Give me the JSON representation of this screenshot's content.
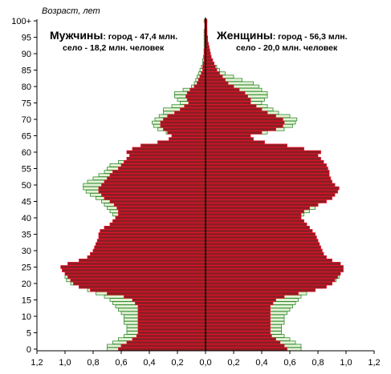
{
  "chart_data": {
    "type": "bar",
    "subtype": "population-pyramid",
    "ylabel": "Возраст, лет",
    "xlim": [
      -1.2,
      1.2
    ],
    "x_ticks": [
      "1,2",
      "1,0",
      "0,8",
      "0,6",
      "0,4",
      "0,2",
      "0,0",
      "0,2",
      "0,4",
      "0,6",
      "0,8",
      "1,0",
      "1,2"
    ],
    "y_ticks": [
      "0",
      "5",
      "10",
      "15",
      "20",
      "25",
      "30",
      "35",
      "40",
      "45",
      "50",
      "55",
      "60",
      "65",
      "70",
      "75",
      "80",
      "85",
      "90",
      "95",
      "100+"
    ],
    "grid": false,
    "legend": "none",
    "panels": {
      "left": {
        "title": "Мужчины",
        "line1": ": город  - 47,4 млн.",
        "line2": "село - 18,2 млн. человек"
      },
      "right": {
        "title": "Женщины",
        "line1": ": город - 56,3 млн.",
        "line2": "село - 20,0 млн. человек"
      }
    },
    "ages": [
      0,
      1,
      2,
      3,
      4,
      5,
      6,
      7,
      8,
      9,
      10,
      11,
      12,
      13,
      14,
      15,
      16,
      17,
      18,
      19,
      20,
      21,
      22,
      23,
      24,
      25,
      26,
      27,
      28,
      29,
      30,
      31,
      32,
      33,
      34,
      35,
      36,
      37,
      38,
      39,
      40,
      41,
      42,
      43,
      44,
      45,
      46,
      47,
      48,
      49,
      50,
      51,
      52,
      53,
      54,
      55,
      56,
      57,
      58,
      59,
      60,
      61,
      62,
      63,
      64,
      65,
      66,
      67,
      68,
      69,
      70,
      71,
      72,
      73,
      74,
      75,
      76,
      77,
      78,
      79,
      80,
      81,
      82,
      83,
      84,
      85,
      86,
      87,
      88,
      89,
      90,
      91,
      92,
      93,
      94,
      95,
      96,
      97,
      98,
      99,
      100
    ],
    "series": [
      {
        "name": "село",
        "color": "#2e8b2e",
        "fill": "#e6f2d8",
        "male": [
          0.7,
          0.7,
          0.66,
          0.62,
          0.58,
          0.56,
          0.56,
          0.56,
          0.58,
          0.58,
          0.58,
          0.6,
          0.62,
          0.64,
          0.66,
          0.68,
          0.72,
          0.78,
          0.84,
          0.9,
          0.96,
          0.99,
          1.0,
          0.99,
          0.96,
          0.93,
          0.86,
          0.78,
          0.74,
          0.71,
          0.7,
          0.69,
          0.69,
          0.68,
          0.67,
          0.66,
          0.66,
          0.65,
          0.65,
          0.64,
          0.64,
          0.66,
          0.68,
          0.7,
          0.72,
          0.74,
          0.78,
          0.82,
          0.85,
          0.87,
          0.87,
          0.84,
          0.8,
          0.76,
          0.72,
          0.7,
          0.68,
          0.62,
          0.56,
          0.5,
          0.46,
          0.4,
          0.3,
          0.22,
          0.2,
          0.22,
          0.28,
          0.34,
          0.37,
          0.38,
          0.36,
          0.33,
          0.3,
          0.3,
          0.24,
          0.18,
          0.2,
          0.22,
          0.22,
          0.16,
          0.1,
          0.08,
          0.07,
          0.06,
          0.05,
          0.04,
          0.03,
          0.02,
          0.02,
          0.015,
          0.01,
          0.01,
          0.01,
          0.01,
          0.01,
          0.01,
          0.01,
          0.01,
          0.005,
          0.005,
          0.01
        ],
        "female": [
          0.68,
          0.68,
          0.64,
          0.6,
          0.56,
          0.54,
          0.54,
          0.54,
          0.56,
          0.56,
          0.56,
          0.58,
          0.6,
          0.62,
          0.64,
          0.66,
          0.68,
          0.72,
          0.78,
          0.84,
          0.9,
          0.93,
          0.95,
          0.94,
          0.9,
          0.86,
          0.8,
          0.74,
          0.7,
          0.68,
          0.67,
          0.66,
          0.66,
          0.65,
          0.65,
          0.64,
          0.64,
          0.64,
          0.64,
          0.64,
          0.66,
          0.7,
          0.74,
          0.78,
          0.8,
          0.82,
          0.86,
          0.88,
          0.9,
          0.92,
          0.92,
          0.89,
          0.86,
          0.82,
          0.78,
          0.74,
          0.72,
          0.7,
          0.66,
          0.62,
          0.58,
          0.5,
          0.4,
          0.28,
          0.24,
          0.3,
          0.44,
          0.56,
          0.62,
          0.64,
          0.65,
          0.6,
          0.52,
          0.48,
          0.44,
          0.4,
          0.42,
          0.44,
          0.44,
          0.4,
          0.38,
          0.34,
          0.26,
          0.2,
          0.14,
          0.1,
          0.08,
          0.06,
          0.05,
          0.04,
          0.03,
          0.02,
          0.02,
          0.015,
          0.01,
          0.01,
          0.01,
          0.01,
          0.005,
          0.005,
          0.01
        ]
      },
      {
        "name": "город",
        "color": "#e8102a",
        "fill": "#8b1e24",
        "male": [
          0.62,
          0.6,
          0.56,
          0.52,
          0.49,
          0.48,
          0.48,
          0.48,
          0.48,
          0.48,
          0.48,
          0.48,
          0.48,
          0.48,
          0.5,
          0.52,
          0.58,
          0.7,
          0.82,
          0.9,
          0.94,
          0.96,
          0.98,
          1.0,
          1.02,
          1.03,
          0.98,
          0.9,
          0.84,
          0.82,
          0.8,
          0.79,
          0.78,
          0.77,
          0.76,
          0.76,
          0.75,
          0.72,
          0.68,
          0.66,
          0.64,
          0.62,
          0.62,
          0.63,
          0.65,
          0.68,
          0.72,
          0.74,
          0.76,
          0.76,
          0.74,
          0.72,
          0.7,
          0.68,
          0.66,
          0.62,
          0.6,
          0.58,
          0.56,
          0.54,
          0.56,
          0.52,
          0.46,
          0.34,
          0.26,
          0.24,
          0.27,
          0.3,
          0.32,
          0.32,
          0.3,
          0.27,
          0.22,
          0.18,
          0.15,
          0.12,
          0.13,
          0.14,
          0.13,
          0.11,
          0.08,
          0.06,
          0.05,
          0.04,
          0.03,
          0.02,
          0.02,
          0.015,
          0.01,
          0.01,
          0.01,
          0.01,
          0.005,
          0.005,
          0.005,
          0.005,
          0.005,
          0.005,
          0.005,
          0.005,
          0.005
        ],
        "female": [
          0.58,
          0.56,
          0.53,
          0.5,
          0.47,
          0.46,
          0.46,
          0.46,
          0.46,
          0.46,
          0.46,
          0.46,
          0.46,
          0.46,
          0.48,
          0.5,
          0.56,
          0.66,
          0.78,
          0.86,
          0.9,
          0.92,
          0.94,
          0.96,
          0.98,
          0.98,
          0.96,
          0.9,
          0.86,
          0.84,
          0.83,
          0.82,
          0.81,
          0.8,
          0.79,
          0.78,
          0.76,
          0.74,
          0.72,
          0.7,
          0.68,
          0.68,
          0.7,
          0.74,
          0.8,
          0.86,
          0.9,
          0.92,
          0.94,
          0.95,
          0.92,
          0.9,
          0.89,
          0.88,
          0.88,
          0.87,
          0.86,
          0.84,
          0.82,
          0.8,
          0.82,
          0.7,
          0.58,
          0.42,
          0.34,
          0.32,
          0.4,
          0.5,
          0.55,
          0.56,
          0.55,
          0.5,
          0.44,
          0.4,
          0.36,
          0.32,
          0.32,
          0.3,
          0.28,
          0.24,
          0.2,
          0.16,
          0.14,
          0.12,
          0.1,
          0.08,
          0.07,
          0.06,
          0.05,
          0.04,
          0.035,
          0.03,
          0.025,
          0.02,
          0.015,
          0.015,
          0.01,
          0.01,
          0.01,
          0.01,
          0.01
        ]
      }
    ]
  }
}
